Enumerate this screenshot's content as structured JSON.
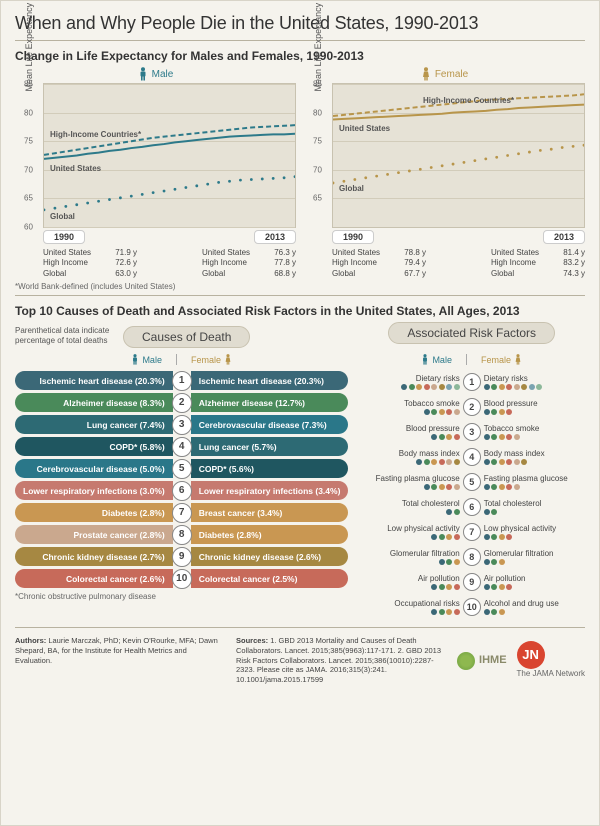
{
  "title": "When and Why People Die in the United States, 1990-2013",
  "section1_title": "Change in Life Expectancy for Males and Females, 1990-2013",
  "section2_title": "Top 10 Causes of Death and Associated Risk Factors in the United States, All Ages, 2013",
  "footnote1": "*World Bank-defined (includes United States)",
  "footnote2": "*Chronic obstructive pulmonary disease",
  "causes_header": "Causes of Death",
  "risks_header": "Associated Risk Factors",
  "caption_note": "Parenthetical data indicate percentage of total deaths",
  "gender": {
    "male": "Male",
    "female": "Female"
  },
  "yaxis_label": "Mean Life Expectancy at Birth, y",
  "colors": {
    "male": "#2d7a8a",
    "female": "#b8954a",
    "chart_bg": "#e6e2d6",
    "grid": "#d2ccba"
  },
  "male_chart": {
    "ylim": [
      60,
      85
    ],
    "yticks": [
      60,
      65,
      70,
      75,
      80,
      85
    ],
    "xlim": [
      1990,
      2013
    ],
    "series": {
      "us": {
        "label": "United States",
        "style": "solid",
        "y": [
          71.9,
          72.1,
          72.3,
          72.5,
          72.8,
          73.0,
          73.3,
          73.5,
          73.8,
          74.0,
          74.3,
          74.5,
          74.8,
          75.0,
          75.2,
          75.4,
          75.6,
          75.8,
          75.9,
          76.0,
          76.1,
          76.2,
          76.2,
          76.3
        ]
      },
      "hi": {
        "label": "High-Income Countries*",
        "style": "dash",
        "y": [
          72.6,
          72.9,
          73.2,
          73.5,
          73.8,
          74.1,
          74.4,
          74.7,
          75.0,
          75.3,
          75.6,
          75.8,
          76.0,
          76.2,
          76.4,
          76.6,
          76.8,
          77.0,
          77.2,
          77.4,
          77.5,
          77.6,
          77.7,
          77.8
        ]
      },
      "global": {
        "label": "Global",
        "style": "dot",
        "y": [
          63.0,
          63.3,
          63.6,
          63.9,
          64.2,
          64.5,
          64.8,
          65.1,
          65.4,
          65.7,
          66.0,
          66.3,
          66.6,
          66.9,
          67.2,
          67.5,
          67.8,
          68.0,
          68.2,
          68.3,
          68.4,
          68.5,
          68.6,
          68.8
        ]
      }
    },
    "stats_1990": [
      [
        "United States",
        "71.9 y"
      ],
      [
        "High Income",
        "72.6 y"
      ],
      [
        "Global",
        "63.0 y"
      ]
    ],
    "stats_2013": [
      [
        "United States",
        "76.3 y"
      ],
      [
        "High Income",
        "77.8 y"
      ],
      [
        "Global",
        "68.8 y"
      ]
    ]
  },
  "female_chart": {
    "ylim": [
      60,
      85
    ],
    "yticks": [
      65,
      70,
      75,
      80,
      85
    ],
    "xlim": [
      1990,
      2013
    ],
    "series": {
      "us": {
        "label": "United States",
        "style": "solid",
        "y": [
          78.8,
          78.9,
          79.0,
          79.1,
          79.2,
          79.3,
          79.4,
          79.5,
          79.6,
          79.7,
          79.8,
          80.0,
          80.1,
          80.2,
          80.3,
          80.5,
          80.6,
          80.8,
          80.9,
          81.0,
          81.1,
          81.2,
          81.3,
          81.4
        ]
      },
      "hi": {
        "label": "High-Income Countries*",
        "style": "dash",
        "y": [
          79.4,
          79.6,
          79.8,
          80.0,
          80.2,
          80.4,
          80.6,
          80.8,
          81.0,
          81.2,
          81.4,
          81.6,
          81.8,
          82.0,
          82.2,
          82.3,
          82.4,
          82.5,
          82.6,
          82.7,
          82.8,
          82.9,
          83.0,
          83.2
        ]
      },
      "global": {
        "label": "Global",
        "style": "dot",
        "y": [
          67.7,
          68.0,
          68.3,
          68.6,
          68.9,
          69.2,
          69.5,
          69.8,
          70.1,
          70.4,
          70.7,
          71.0,
          71.3,
          71.6,
          71.9,
          72.2,
          72.5,
          72.8,
          73.1,
          73.4,
          73.6,
          73.9,
          74.1,
          74.3
        ]
      }
    },
    "stats_1990": [
      [
        "United States",
        "78.8 y"
      ],
      [
        "High Income",
        "79.4 y"
      ],
      [
        "Global",
        "67.7 y"
      ]
    ],
    "stats_2013": [
      [
        "United States",
        "81.4 y"
      ],
      [
        "High Income",
        "83.2 y"
      ],
      [
        "Global",
        "74.3 y"
      ]
    ]
  },
  "xstart": "1990",
  "xend": "2013",
  "cause_colors": {
    "ihd": "#3b6877",
    "alz": "#4a8a5a",
    "lung": "#2d6a74",
    "copd": "#1f5660",
    "cerebro": "#2a7789",
    "lri": "#c67a6f",
    "diab": "#c99752",
    "breast": "#c99752",
    "prostate": "#caa88e",
    "ckd": "#a68842",
    "crc": "#c76a5a"
  },
  "causes": [
    {
      "rank": 1,
      "male": "Ischemic heart disease (20.3%)",
      "female": "Ischemic heart disease (20.3%)",
      "mc": "ihd",
      "fc": "ihd"
    },
    {
      "rank": 2,
      "male": "Alzheimer disease  (8.3%)",
      "female": "Alzheimer disease (12.7%)",
      "mc": "alz",
      "fc": "alz"
    },
    {
      "rank": 3,
      "male": "Lung cancer (7.4%)",
      "female": "Cerebrovascular disease (7.3%)",
      "mc": "lung",
      "fc": "cerebro"
    },
    {
      "rank": 4,
      "male": "COPD* (5.8%)",
      "female": "Lung cancer (5.7%)",
      "mc": "copd",
      "fc": "lung"
    },
    {
      "rank": 5,
      "male": "Cerebrovascular disease  (5.0%)",
      "female": "COPD* (5.6%)",
      "mc": "cerebro",
      "fc": "copd"
    },
    {
      "rank": 6,
      "male": "Lower respiratory infections (3.0%)",
      "female": "Lower respiratory infections (3.4%)",
      "mc": "lri",
      "fc": "lri"
    },
    {
      "rank": 7,
      "male": "Diabetes  (2.8%)",
      "female": "Breast cancer (3.4%)",
      "mc": "diab",
      "fc": "breast"
    },
    {
      "rank": 8,
      "male": "Prostate cancer (2.8%)",
      "female": "Diabetes (2.8%)",
      "mc": "prostate",
      "fc": "diab"
    },
    {
      "rank": 9,
      "male": "Chronic kidney disease (2.7%)",
      "female": "Chronic kidney disease (2.6%)",
      "mc": "ckd",
      "fc": "ckd"
    },
    {
      "rank": 10,
      "male": "Colorectal cancer (2.6%)",
      "female": "Colorectal cancer (2.5%)",
      "mc": "crc",
      "fc": "crc"
    }
  ],
  "dot_palette": [
    "#3b6877",
    "#4a8a5a",
    "#c99752",
    "#c76a5a",
    "#caa88e",
    "#a68842",
    "#7aa3b0",
    "#8cb89a",
    "#d4a679",
    "#9e7f5a"
  ],
  "risks": [
    {
      "rank": 1,
      "male": "Dietary risks",
      "female": "Dietary risks",
      "md": 8,
      "fd": 8
    },
    {
      "rank": 2,
      "male": "Tobacco smoke",
      "female": "Blood pressure",
      "md": 5,
      "fd": 4
    },
    {
      "rank": 3,
      "male": "Blood pressure",
      "female": "Tobacco smoke",
      "md": 4,
      "fd": 5
    },
    {
      "rank": 4,
      "male": "Body mass index",
      "female": "Body mass index",
      "md": 6,
      "fd": 6
    },
    {
      "rank": 5,
      "male": "Fasting plasma glucose",
      "female": "Fasting plasma glucose",
      "md": 5,
      "fd": 5
    },
    {
      "rank": 6,
      "male": "Total cholesterol",
      "female": "Total cholesterol",
      "md": 2,
      "fd": 2
    },
    {
      "rank": 7,
      "male": "Low physical activity",
      "female": "Low physical activity",
      "md": 4,
      "fd": 4
    },
    {
      "rank": 8,
      "male": "Glomerular filtration",
      "female": "Glomerular filtration",
      "md": 3,
      "fd": 3
    },
    {
      "rank": 9,
      "male": "Air pollution",
      "female": "Air pollution",
      "md": 4,
      "fd": 4
    },
    {
      "rank": 10,
      "male": "Occupational risks",
      "female": "Alcohol and drug use",
      "md": 4,
      "fd": 3
    }
  ],
  "authors_label": "Authors:",
  "authors": "Laurie Marczak, PhD; Kevin O'Rourke, MFA; Dawn Shepard, BA, for the Institute for Health Metrics and Evaluation.",
  "sources_label": "Sources:",
  "sources": "1. GBD 2013 Mortality and Causes of Death Collaborators. Lancet. 2015;385(9963):117-171. 2. GBD 2013 Risk Factors Collaborators. Lancet. 2015;386(10010):2287-2323. Please cite as JAMA. 2016;315(3):241. 10.1001/jama.2015.17599",
  "ihme": "IHME",
  "jn": "JN",
  "jama_network": "The JAMA Network"
}
